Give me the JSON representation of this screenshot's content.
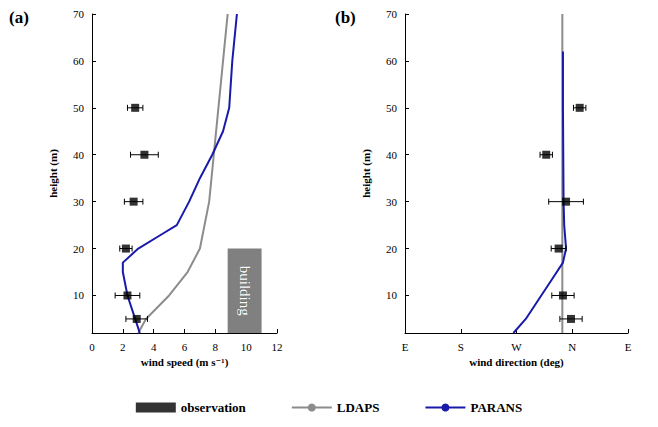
{
  "chart_data": [
    {
      "type": "line",
      "title": "(a)",
      "x_label": "wind speed (m s⁻¹)",
      "y_label": "height (m)",
      "xlim": [
        0,
        12
      ],
      "xticks": [
        0,
        2,
        4,
        6,
        8,
        10,
        12
      ],
      "ylim": [
        2,
        70
      ],
      "yticks": [
        10,
        20,
        30,
        40,
        50,
        60,
        70
      ],
      "grid": false,
      "legend": "bottom",
      "series": [
        {
          "name": "observation",
          "type": "scatter",
          "marker": "square",
          "color": "#000000",
          "x": [
            2.9,
            2.3,
            2.2,
            2.7,
            3.4,
            2.8
          ],
          "y": [
            5,
            10,
            20,
            30,
            40,
            50
          ],
          "x_error": [
            0.7,
            0.8,
            0.4,
            0.6,
            0.9,
            0.5
          ]
        },
        {
          "name": "LDAPS",
          "type": "line",
          "line_style": "solid",
          "color": "#8c8c8c",
          "x": [
            3.0,
            3.5,
            5.0,
            6.2,
            7.0,
            7.6,
            7.9,
            8.2,
            8.5,
            8.8
          ],
          "y": [
            2,
            5,
            10,
            15,
            20,
            30,
            40,
            50,
            60,
            70
          ]
        },
        {
          "name": "PARANS",
          "type": "line",
          "line_style": "solid",
          "color": "#1a1aaa",
          "x": [
            3.1,
            2.8,
            2.3,
            2.0,
            2.0,
            3.0,
            4.5,
            5.5,
            6.3,
            7.0,
            7.8,
            8.5,
            8.9,
            9.0,
            9.1,
            9.4
          ],
          "y": [
            2,
            5,
            10,
            15,
            17,
            20,
            23,
            25,
            30,
            35,
            40,
            45,
            50,
            55,
            60,
            70
          ]
        }
      ],
      "annotations": [
        {
          "text": "building",
          "x": [
            8.8,
            11
          ],
          "y": [
            2,
            20
          ],
          "color": "#808080"
        }
      ]
    },
    {
      "type": "line",
      "title": "(b)",
      "x_label": "wind direction (deg)",
      "y_label": "height (m)",
      "xlim": [
        90,
        450
      ],
      "xticks": [
        {
          "value": 90,
          "label": "E"
        },
        {
          "value": 180,
          "label": "S"
        },
        {
          "value": 270,
          "label": "W"
        },
        {
          "value": 360,
          "label": "N"
        },
        {
          "value": 450,
          "label": "E"
        }
      ],
      "ylim": [
        2,
        70
      ],
      "yticks": [
        10,
        20,
        30,
        40,
        50,
        60,
        70
      ],
      "grid": false,
      "series": [
        {
          "name": "observation",
          "type": "scatter",
          "marker": "square",
          "color": "#000000",
          "x": [
            358,
            345,
            338,
            350,
            318,
            372
          ],
          "y": [
            5,
            10,
            20,
            30,
            40,
            50
          ],
          "x_error": [
            18,
            18,
            12,
            28,
            10,
            10
          ]
        },
        {
          "name": "LDAPS",
          "type": "line",
          "line_style": "solid",
          "color": "#8c8c8c",
          "x": [
            344,
            344
          ],
          "y": [
            2,
            70
          ]
        },
        {
          "name": "PARANS",
          "type": "line",
          "line_style": "solid",
          "color": "#1a1aaa",
          "x": [
            265,
            285,
            310,
            330,
            345,
            350,
            347,
            346,
            345,
            345
          ],
          "y": [
            2,
            5,
            10,
            14,
            17,
            20,
            25,
            30,
            50,
            62
          ]
        }
      ]
    }
  ]
}
